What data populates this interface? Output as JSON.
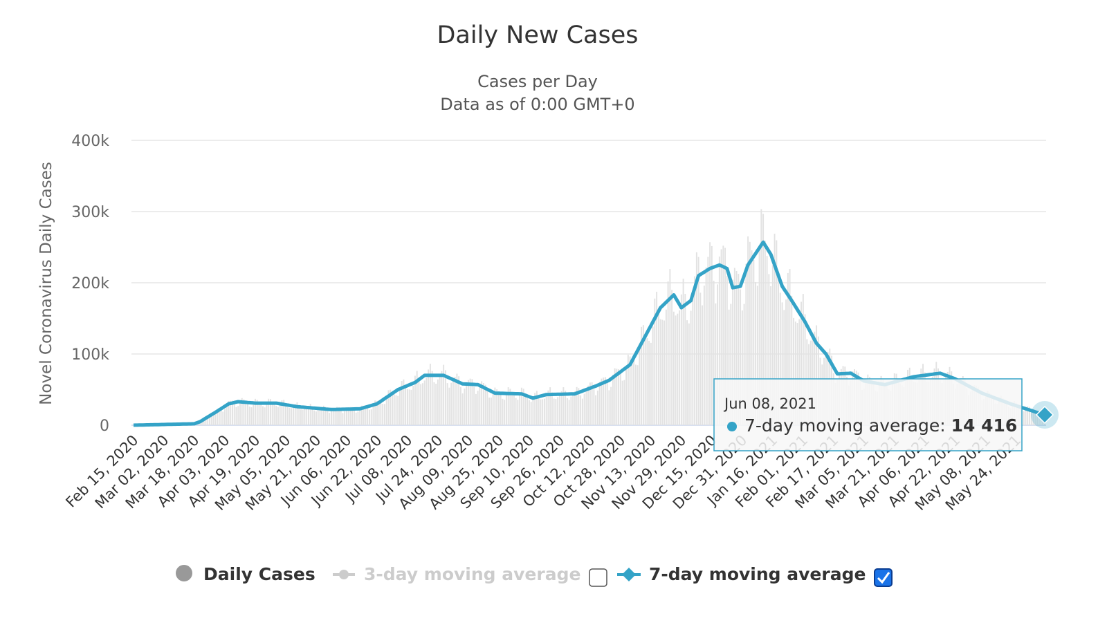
{
  "chart_data": {
    "type": "line",
    "title": "Daily New Cases",
    "subtitle": [
      "Cases per Day",
      "Data as of 0:00 GMT+0"
    ],
    "ylabel": "Novel Coronavirus Daily Cases",
    "xlabel": "",
    "ylim": [
      0,
      400000
    ],
    "y_ticks": [
      "0",
      "100k",
      "200k",
      "300k",
      "400k"
    ],
    "y_tick_values": [
      0,
      100000,
      200000,
      300000,
      400000
    ],
    "x_range": [
      "2020-02-15",
      "2021-06-08"
    ],
    "x_tick_labels": [
      "Feb 15, 2020",
      "Mar 02, 2020",
      "Mar 18, 2020",
      "Apr 03, 2020",
      "Apr 19, 2020",
      "May 05, 2020",
      "May 21, 2020",
      "Jun 06, 2020",
      "Jun 22, 2020",
      "Jul 08, 2020",
      "Jul 24, 2020",
      "Aug 09, 2020",
      "Aug 25, 2020",
      "Sep 10, 2020",
      "Sep 26, 2020",
      "Oct 12, 2020",
      "Oct 28, 2020",
      "Nov 13, 2020",
      "Nov 29, 2020",
      "Dec 15, 2020",
      "Dec 31, 2020",
      "Jan 16, 2021",
      "Feb 01, 2021",
      "Feb 17, 2021",
      "Mar 05, 2021",
      "Mar 21, 2021",
      "Apr 06, 2021",
      "Apr 22, 2021",
      "May 08, 2021",
      "May 24, 2021"
    ],
    "grid": true,
    "legend_placement": "bottom",
    "colors": {
      "daily": "#e2e2e2",
      "seven_day": "#34a3c7",
      "three_day_disabled": "#cccccc"
    },
    "series": [
      {
        "name": "7-day moving average",
        "points": [
          [
            "2020-02-15",
            0
          ],
          [
            "2020-03-18",
            2000
          ],
          [
            "2020-03-21",
            5000
          ],
          [
            "2020-03-29",
            18000
          ],
          [
            "2020-04-05",
            30000
          ],
          [
            "2020-04-10",
            33000
          ],
          [
            "2020-04-19",
            31000
          ],
          [
            "2020-04-30",
            31000
          ],
          [
            "2020-05-11",
            26000
          ],
          [
            "2020-05-29",
            22000
          ],
          [
            "2020-06-13",
            23000
          ],
          [
            "2020-06-22",
            30000
          ],
          [
            "2020-07-03",
            50000
          ],
          [
            "2020-07-12",
            60000
          ],
          [
            "2020-07-17",
            70000
          ],
          [
            "2020-07-27",
            70000
          ],
          [
            "2020-08-06",
            58000
          ],
          [
            "2020-08-14",
            57000
          ],
          [
            "2020-08-23",
            45000
          ],
          [
            "2020-09-06",
            44000
          ],
          [
            "2020-09-12",
            38000
          ],
          [
            "2020-09-19",
            43000
          ],
          [
            "2020-10-04",
            44000
          ],
          [
            "2020-10-15",
            55000
          ],
          [
            "2020-10-22",
            63000
          ],
          [
            "2020-11-02",
            85000
          ],
          [
            "2020-11-11",
            130000
          ],
          [
            "2020-11-18",
            165000
          ],
          [
            "2020-11-25",
            183000
          ],
          [
            "2020-11-29",
            165000
          ],
          [
            "2020-12-04",
            175000
          ],
          [
            "2020-12-08",
            210000
          ],
          [
            "2020-12-14",
            220000
          ],
          [
            "2020-12-19",
            225000
          ],
          [
            "2020-12-23",
            220000
          ],
          [
            "2020-12-26",
            193000
          ],
          [
            "2020-12-30",
            195000
          ],
          [
            "2021-01-03",
            225000
          ],
          [
            "2021-01-08",
            245000
          ],
          [
            "2021-01-11",
            257000
          ],
          [
            "2021-01-15",
            240000
          ],
          [
            "2021-01-21",
            195000
          ],
          [
            "2021-01-26",
            175000
          ],
          [
            "2021-02-02",
            145000
          ],
          [
            "2021-02-08",
            115000
          ],
          [
            "2021-02-13",
            100000
          ],
          [
            "2021-02-19",
            72000
          ],
          [
            "2021-02-26",
            73000
          ],
          [
            "2021-03-05",
            62000
          ],
          [
            "2021-03-16",
            57000
          ],
          [
            "2021-03-31",
            68000
          ],
          [
            "2021-04-14",
            73000
          ],
          [
            "2021-04-22",
            65000
          ],
          [
            "2021-05-06",
            45000
          ],
          [
            "2021-05-21",
            30000
          ],
          [
            "2021-06-08",
            14416
          ]
        ]
      },
      {
        "name": "Daily Cases",
        "note_visible": false
      }
    ]
  },
  "legend": {
    "items": [
      {
        "label": "Daily Cases",
        "enabled": true
      },
      {
        "label": "3-day moving average",
        "enabled": false,
        "checked": false
      },
      {
        "label": "7-day moving average",
        "enabled": true,
        "checked": true
      }
    ]
  },
  "tooltip": {
    "date": "Jun 08, 2021",
    "series": "7-day moving average",
    "separator": ": ",
    "value": "14 416"
  }
}
